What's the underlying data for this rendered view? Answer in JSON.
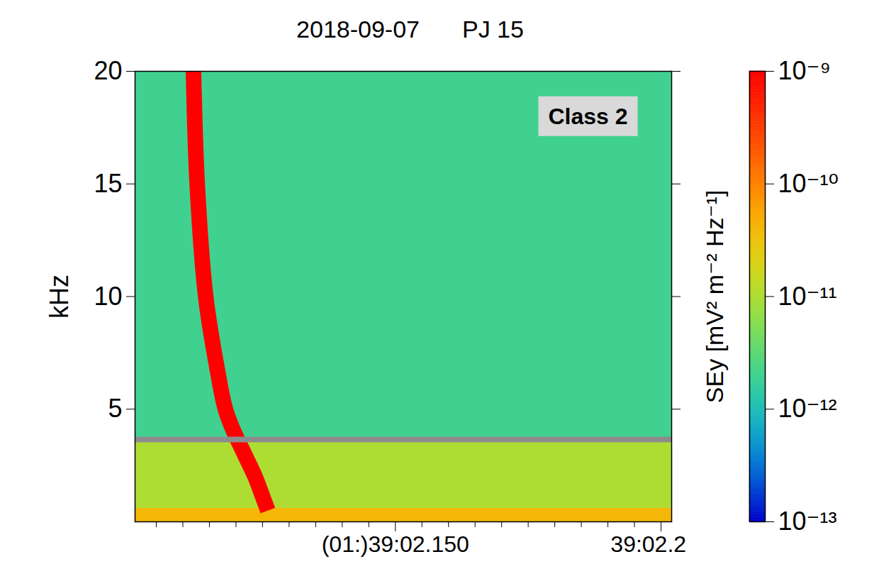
{
  "chart_data": {
    "type": "heatmap",
    "title": "2018-09-07",
    "subtitle": "PJ 15",
    "ylabel": "kHz",
    "xlim": [
      2.101,
      2.202
    ],
    "xticks": [
      {
        "value": 2.15,
        "label": "(01:)39:02.150"
      },
      {
        "value": 2.2,
        "label": "39:02.200"
      }
    ],
    "xminorticks": [
      2.105,
      2.11,
      2.115,
      2.12,
      2.125,
      2.13,
      2.135,
      2.14,
      2.145,
      2.155,
      2.16,
      2.165,
      2.17,
      2.175,
      2.18,
      2.185,
      2.19,
      2.195
    ],
    "ylim": [
      0,
      20
    ],
    "yticks": [
      5,
      10,
      15,
      20
    ],
    "cells": [
      {
        "x": [
          2.101,
          2.202
        ],
        "y": [
          0,
          0.6
        ],
        "value": 4e-11
      },
      {
        "x": [
          2.101,
          2.202
        ],
        "y": [
          0.6,
          3.65
        ],
        "value": 1e-11
      },
      {
        "x": [
          2.101,
          2.202
        ],
        "y": [
          3.65,
          20
        ],
        "value": 2e-12
      }
    ],
    "trace": {
      "x": [
        2.112,
        2.1127,
        2.1143,
        2.1163,
        2.118,
        2.1196,
        2.1216,
        2.1236,
        2.1252,
        2.126
      ],
      "y": [
        20,
        15,
        10,
        7,
        5,
        4,
        3,
        2,
        1,
        0.5
      ],
      "value": 1e-09
    },
    "reference_line": {
      "y": 3.65,
      "color": "#8c8c8c"
    },
    "annotations": [
      "Class 2"
    ],
    "colorbar": {
      "label": "SEy [mV² m⁻² Hz⁻¹]",
      "lim": [
        1e-13,
        1e-09
      ],
      "ticks": [
        {
          "value": 1e-13,
          "label": "10⁻¹³"
        },
        {
          "value": 1e-12,
          "label": "10⁻¹²"
        },
        {
          "value": 1e-11,
          "label": "10⁻¹¹"
        },
        {
          "value": 1e-10,
          "label": "10⁻¹⁰"
        },
        {
          "value": 1e-09,
          "label": "10⁻⁹"
        }
      ]
    }
  }
}
